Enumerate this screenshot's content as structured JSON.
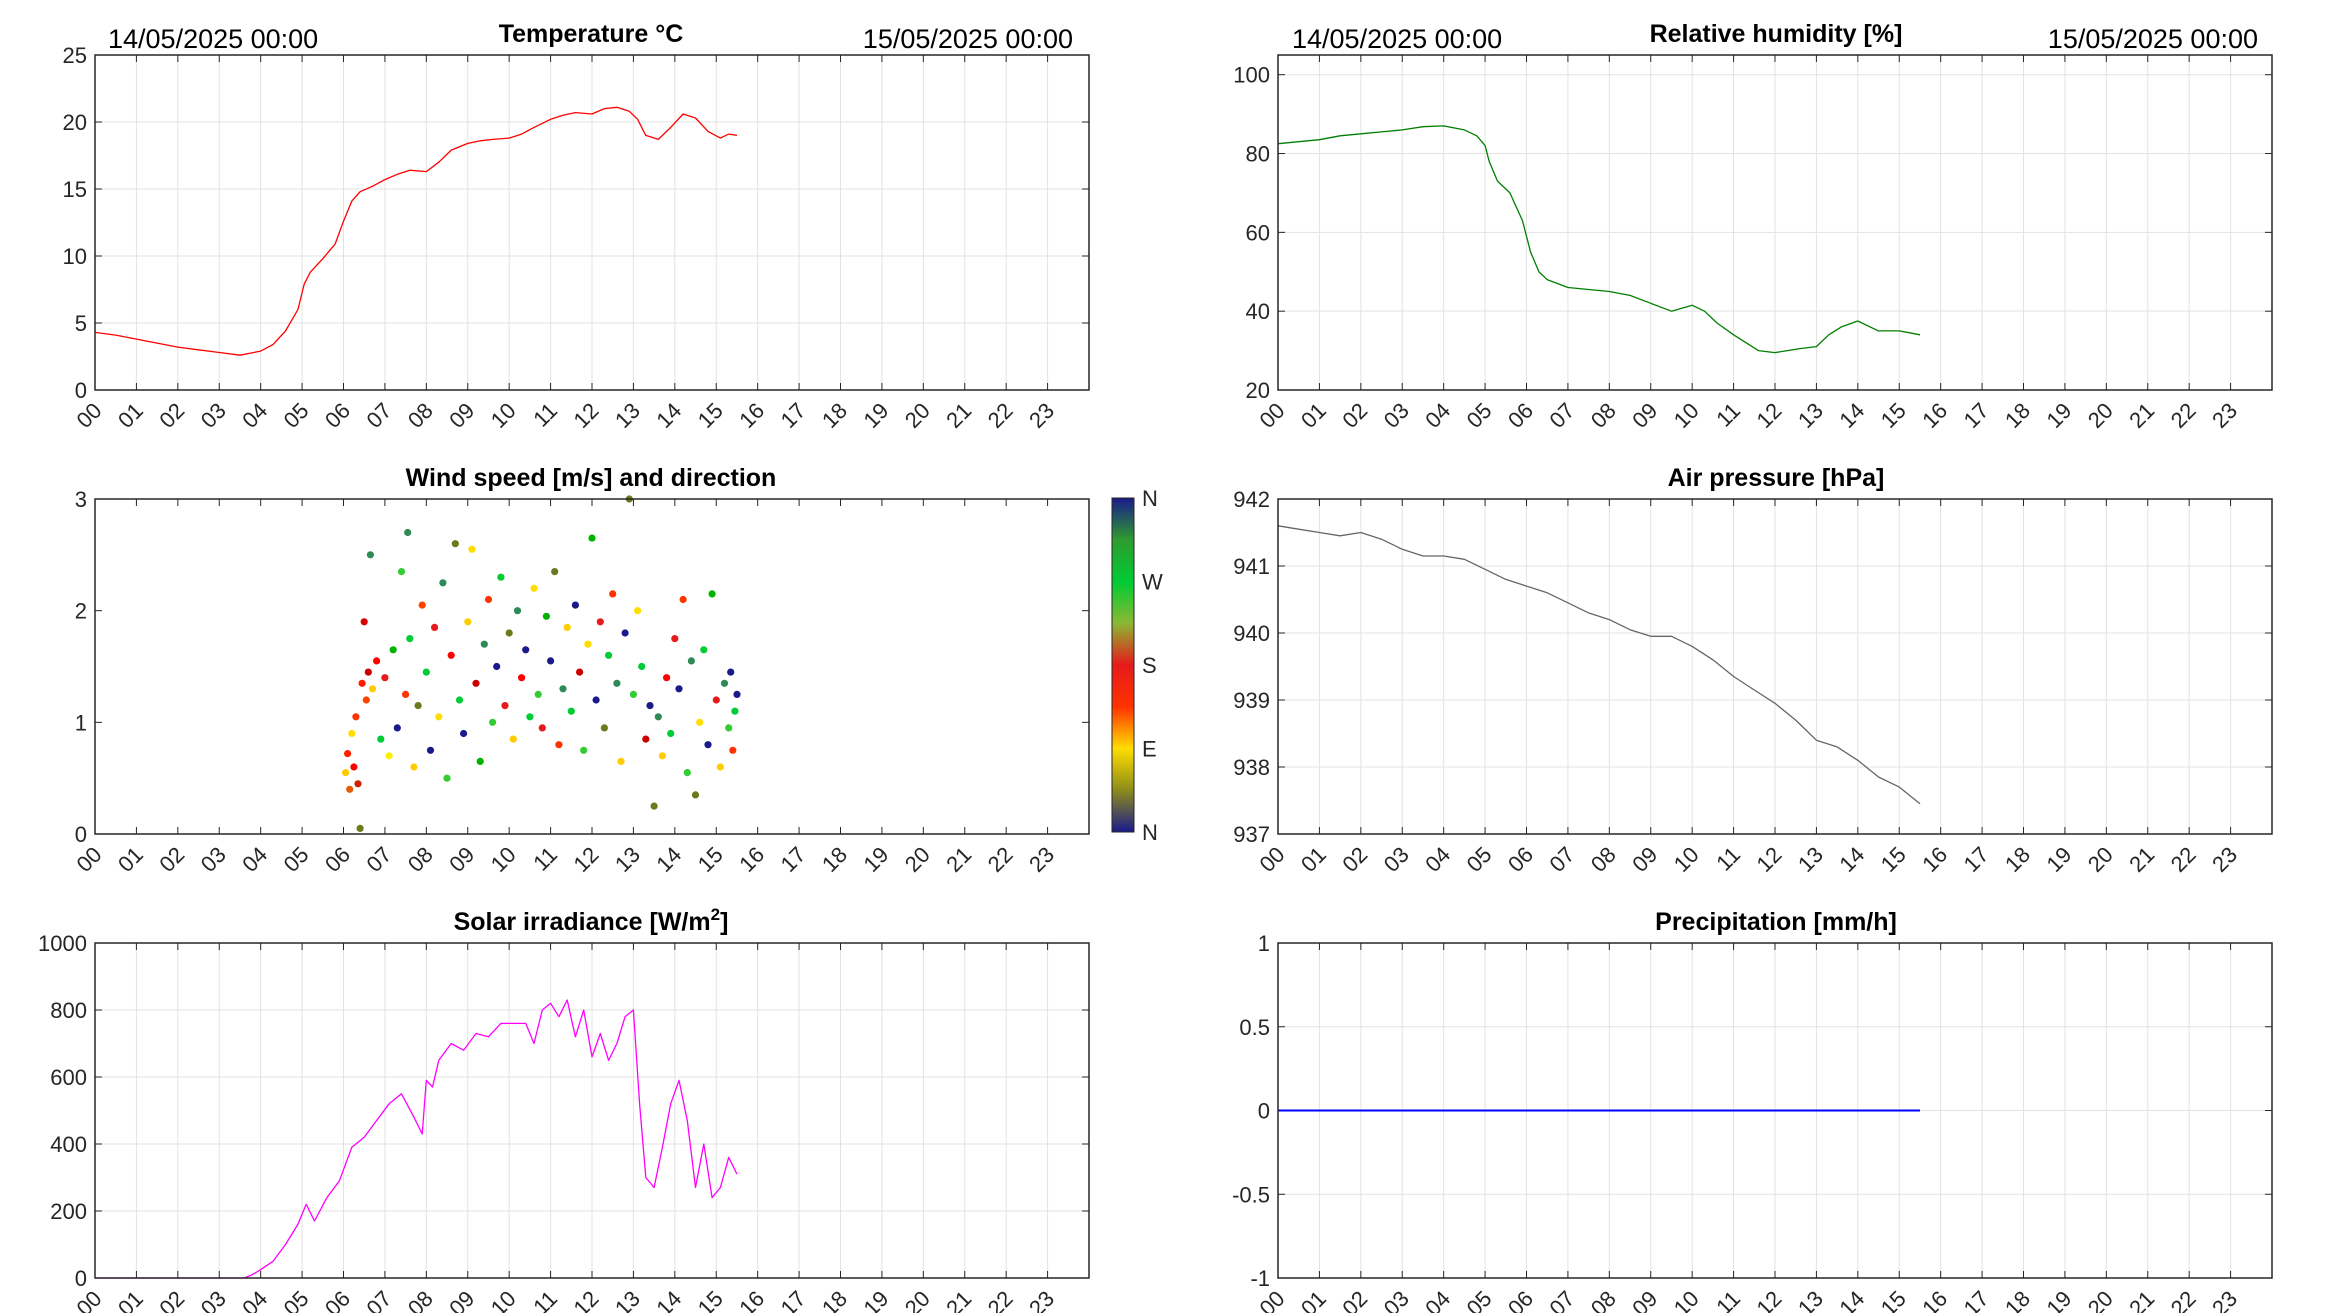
{
  "chart_data": [
    {
      "type": "line",
      "title": "Temperature °C",
      "date_start": "14/05/2025 00:00",
      "date_end": "15/05/2025 00:00",
      "xlim": [
        0,
        24
      ],
      "ylim": [
        0,
        25
      ],
      "yticks": [
        "0",
        "5",
        "10",
        "15",
        "20",
        "25"
      ],
      "xticks": [
        "00",
        "01",
        "02",
        "03",
        "04",
        "05",
        "06",
        "07",
        "08",
        "09",
        "10",
        "11",
        "12",
        "13",
        "14",
        "15",
        "16",
        "17",
        "18",
        "19",
        "20",
        "21",
        "22",
        "23"
      ],
      "grid": true,
      "color": "#ff0000",
      "x": [
        0,
        0.5,
        1,
        1.5,
        2,
        2.5,
        3,
        3.5,
        4,
        4.3,
        4.6,
        4.9,
        5.05,
        5.2,
        5.5,
        5.8,
        6.0,
        6.2,
        6.4,
        6.7,
        7.0,
        7.3,
        7.6,
        8.0,
        8.3,
        8.6,
        9.0,
        9.3,
        9.6,
        10.0,
        10.3,
        10.6,
        11.0,
        11.3,
        11.6,
        12.0,
        12.3,
        12.6,
        12.9,
        13.1,
        13.3,
        13.6,
        13.9,
        14.2,
        14.5,
        14.8,
        15.1,
        15.3,
        15.5
      ],
      "y": [
        4.3,
        4.1,
        3.8,
        3.5,
        3.2,
        3.0,
        2.8,
        2.6,
        2.9,
        3.4,
        4.4,
        6.0,
        7.9,
        8.8,
        9.8,
        10.9,
        12.6,
        14.1,
        14.8,
        15.2,
        15.7,
        16.1,
        16.4,
        16.3,
        17.0,
        17.9,
        18.4,
        18.6,
        18.7,
        18.8,
        19.1,
        19.6,
        20.2,
        20.5,
        20.7,
        20.6,
        21.0,
        21.1,
        20.8,
        20.2,
        19.0,
        18.7,
        19.6,
        20.6,
        20.3,
        19.3,
        18.8,
        19.1,
        19.0
      ]
    },
    {
      "type": "line",
      "title": "Relative humidity [%]",
      "date_start": "14/05/2025 00:00",
      "date_end": "15/05/2025 00:00",
      "xlim": [
        0,
        24
      ],
      "ylim": [
        20,
        105
      ],
      "yticks": [
        "20",
        "40",
        "60",
        "80",
        "100"
      ],
      "xticks": [
        "00",
        "01",
        "02",
        "03",
        "04",
        "05",
        "06",
        "07",
        "08",
        "09",
        "10",
        "11",
        "12",
        "13",
        "14",
        "15",
        "16",
        "17",
        "18",
        "19",
        "20",
        "21",
        "22",
        "23"
      ],
      "grid": true,
      "color": "#007f00",
      "x": [
        0,
        0.5,
        1,
        1.5,
        2,
        2.5,
        3,
        3.5,
        4,
        4.5,
        4.8,
        5.0,
        5.1,
        5.3,
        5.6,
        5.9,
        6.1,
        6.3,
        6.5,
        7.0,
        7.5,
        8.0,
        8.5,
        9.0,
        9.5,
        10.0,
        10.3,
        10.6,
        11.0,
        11.3,
        11.6,
        12.0,
        12.3,
        12.6,
        13.0,
        13.3,
        13.6,
        14.0,
        14.5,
        15.0,
        15.5
      ],
      "y": [
        82.5,
        83.0,
        83.5,
        84.5,
        85.0,
        85.5,
        86.0,
        86.8,
        87.0,
        86.0,
        84.5,
        82.0,
        78.0,
        73.0,
        70.0,
        63.0,
        55.0,
        50.0,
        48.0,
        46.0,
        45.5,
        45.0,
        44.0,
        42.0,
        40.0,
        41.5,
        40.0,
        37.0,
        34.0,
        32.0,
        30.0,
        29.5,
        30.0,
        30.5,
        31.0,
        34.0,
        36.0,
        37.5,
        35.0,
        35.0,
        34.0
      ]
    },
    {
      "type": "scatter",
      "title": "Wind speed [m/s] and direction",
      "xlim": [
        0,
        24
      ],
      "ylim": [
        0,
        3
      ],
      "yticks": [
        "0",
        "1",
        "2",
        "3"
      ],
      "xticks": [
        "00",
        "01",
        "02",
        "03",
        "04",
        "05",
        "06",
        "07",
        "08",
        "09",
        "10",
        "11",
        "12",
        "13",
        "14",
        "15",
        "16",
        "17",
        "18",
        "19",
        "20",
        "21",
        "22",
        "23"
      ],
      "grid": false,
      "colorbar": {
        "labels": [
          "N",
          "W",
          "S",
          "E",
          "N"
        ],
        "colors": [
          "#1a1a8c",
          "#2f9b2f",
          "#00cc33",
          "#8cb833",
          "#e61a1a",
          "#ff3300",
          "#ffdd00",
          "#8c8c1a",
          "#1a1a8c"
        ]
      },
      "points": [
        [
          6.05,
          0.55,
          "#ffcc00"
        ],
        [
          6.1,
          0.72,
          "#ff2200"
        ],
        [
          6.15,
          0.4,
          "#e65c00"
        ],
        [
          6.2,
          0.9,
          "#ffdd00"
        ],
        [
          6.25,
          0.6,
          "#ff0000"
        ],
        [
          6.3,
          1.05,
          "#ff3300"
        ],
        [
          6.35,
          0.45,
          "#cc2200"
        ],
        [
          6.4,
          0.05,
          "#6b7a1a"
        ],
        [
          6.45,
          1.35,
          "#ff1a00"
        ],
        [
          6.5,
          1.9,
          "#d90000"
        ],
        [
          6.55,
          1.2,
          "#ff4400"
        ],
        [
          6.6,
          1.45,
          "#cc0000"
        ],
        [
          6.65,
          2.5,
          "#2e8b57"
        ],
        [
          6.7,
          1.3,
          "#ffcc00"
        ],
        [
          6.8,
          1.55,
          "#ff0000"
        ],
        [
          6.9,
          0.85,
          "#00cc33"
        ],
        [
          7.0,
          1.4,
          "#e61a1a"
        ],
        [
          7.1,
          0.7,
          "#ffee00"
        ],
        [
          7.2,
          1.65,
          "#00b300"
        ],
        [
          7.3,
          0.95,
          "#1a1a8c"
        ],
        [
          7.4,
          2.35,
          "#33cc33"
        ],
        [
          7.5,
          1.25,
          "#ff3300"
        ],
        [
          7.55,
          2.7,
          "#2e8b57"
        ],
        [
          7.6,
          1.75,
          "#00cc33"
        ],
        [
          7.7,
          0.6,
          "#ffcc00"
        ],
        [
          7.8,
          1.15,
          "#6b7a1a"
        ],
        [
          7.9,
          2.05,
          "#ff4400"
        ],
        [
          8.0,
          1.45,
          "#00cc33"
        ],
        [
          8.1,
          0.75,
          "#1a1a8c"
        ],
        [
          8.2,
          1.85,
          "#e61a1a"
        ],
        [
          8.3,
          1.05,
          "#ffdd00"
        ],
        [
          8.4,
          2.25,
          "#2e8b57"
        ],
        [
          8.5,
          0.5,
          "#33cc33"
        ],
        [
          8.6,
          1.6,
          "#ff0000"
        ],
        [
          8.7,
          2.6,
          "#6b7a1a"
        ],
        [
          8.8,
          1.2,
          "#00cc33"
        ],
        [
          8.9,
          0.9,
          "#1a1a8c"
        ],
        [
          9.0,
          1.9,
          "#ffcc00"
        ],
        [
          9.1,
          2.55,
          "#ffdd00"
        ],
        [
          9.2,
          1.35,
          "#cc0000"
        ],
        [
          9.3,
          0.65,
          "#00b300"
        ],
        [
          9.4,
          1.7,
          "#2e8b57"
        ],
        [
          9.5,
          2.1,
          "#ff3300"
        ],
        [
          9.6,
          1.0,
          "#33cc33"
        ],
        [
          9.7,
          1.5,
          "#1a1a8c"
        ],
        [
          9.8,
          2.3,
          "#00cc33"
        ],
        [
          9.9,
          1.15,
          "#e61a1a"
        ],
        [
          10.0,
          1.8,
          "#6b7a1a"
        ],
        [
          10.1,
          0.85,
          "#ffcc00"
        ],
        [
          10.2,
          2.0,
          "#2e8b57"
        ],
        [
          10.3,
          1.4,
          "#ff0000"
        ],
        [
          10.4,
          1.65,
          "#1a1a8c"
        ],
        [
          10.5,
          1.05,
          "#00cc33"
        ],
        [
          10.6,
          2.2,
          "#ffdd00"
        ],
        [
          10.7,
          1.25,
          "#33cc33"
        ],
        [
          10.8,
          0.95,
          "#e61a1a"
        ],
        [
          10.9,
          1.95,
          "#00b300"
        ],
        [
          11.0,
          1.55,
          "#1a1a8c"
        ],
        [
          11.1,
          2.35,
          "#6b7a1a"
        ],
        [
          11.2,
          0.8,
          "#ff3300"
        ],
        [
          11.3,
          1.3,
          "#2e8b57"
        ],
        [
          11.4,
          1.85,
          "#ffcc00"
        ],
        [
          11.5,
          1.1,
          "#00cc33"
        ],
        [
          11.6,
          2.05,
          "#1a1a8c"
        ],
        [
          11.7,
          1.45,
          "#cc0000"
        ],
        [
          11.8,
          0.75,
          "#33cc33"
        ],
        [
          11.9,
          1.7,
          "#ffdd00"
        ],
        [
          12.0,
          2.65,
          "#00b300"
        ],
        [
          12.1,
          1.2,
          "#1a1a8c"
        ],
        [
          12.2,
          1.9,
          "#e61a1a"
        ],
        [
          12.3,
          0.95,
          "#6b7a1a"
        ],
        [
          12.4,
          1.6,
          "#00cc33"
        ],
        [
          12.5,
          2.15,
          "#ff3300"
        ],
        [
          12.6,
          1.35,
          "#2e8b57"
        ],
        [
          12.7,
          0.65,
          "#ffcc00"
        ],
        [
          12.8,
          1.8,
          "#1a1a8c"
        ],
        [
          12.9,
          3.0,
          "#6b7a1a"
        ],
        [
          13.0,
          1.25,
          "#33cc33"
        ],
        [
          13.1,
          2.0,
          "#ffdd00"
        ],
        [
          13.2,
          1.5,
          "#00cc33"
        ],
        [
          13.3,
          0.85,
          "#cc0000"
        ],
        [
          13.4,
          1.15,
          "#1a1a8c"
        ],
        [
          13.5,
          0.25,
          "#6b7a1a"
        ],
        [
          13.6,
          1.05,
          "#2e8b57"
        ],
        [
          13.7,
          0.7,
          "#ffcc00"
        ],
        [
          13.8,
          1.4,
          "#ff0000"
        ],
        [
          13.9,
          0.9,
          "#00cc33"
        ],
        [
          14.0,
          1.75,
          "#e61a1a"
        ],
        [
          14.1,
          1.3,
          "#1a1a8c"
        ],
        [
          14.2,
          2.1,
          "#ff3300"
        ],
        [
          14.3,
          0.55,
          "#33cc33"
        ],
        [
          14.4,
          1.55,
          "#2e8b57"
        ],
        [
          14.5,
          0.35,
          "#6b7a1a"
        ],
        [
          14.6,
          1.0,
          "#ffdd00"
        ],
        [
          14.7,
          1.65,
          "#00cc33"
        ],
        [
          14.8,
          0.8,
          "#1a1a8c"
        ],
        [
          14.9,
          2.15,
          "#00b300"
        ],
        [
          15.0,
          1.2,
          "#e61a1a"
        ],
        [
          15.1,
          0.6,
          "#ffcc00"
        ],
        [
          15.2,
          1.35,
          "#2e8b57"
        ],
        [
          15.3,
          0.95,
          "#33cc33"
        ],
        [
          15.35,
          1.45,
          "#1a1a8c"
        ],
        [
          15.4,
          0.75,
          "#ff3300"
        ],
        [
          15.45,
          1.1,
          "#00cc33"
        ],
        [
          15.5,
          1.25,
          "#1a1a8c"
        ]
      ]
    },
    {
      "type": "line",
      "title": "Air pressure [hPa]",
      "xlim": [
        0,
        24
      ],
      "ylim": [
        937,
        942
      ],
      "yticks": [
        "937",
        "938",
        "939",
        "940",
        "941",
        "942"
      ],
      "xticks": [
        "00",
        "01",
        "02",
        "03",
        "04",
        "05",
        "06",
        "07",
        "08",
        "09",
        "10",
        "11",
        "12",
        "13",
        "14",
        "15",
        "16",
        "17",
        "18",
        "19",
        "20",
        "21",
        "22",
        "23"
      ],
      "grid": true,
      "color": "#666666",
      "x": [
        0,
        0.5,
        1,
        1.5,
        2,
        2.5,
        3,
        3.5,
        4,
        4.5,
        5,
        5.5,
        6,
        6.5,
        7,
        7.5,
        8,
        8.5,
        9,
        9.5,
        10,
        10.5,
        11,
        11.5,
        12,
        12.5,
        13,
        13.5,
        14,
        14.5,
        15,
        15.5
      ],
      "y": [
        941.6,
        941.55,
        941.5,
        941.45,
        941.5,
        941.4,
        941.25,
        941.15,
        941.15,
        941.1,
        940.95,
        940.8,
        940.7,
        940.6,
        940.45,
        940.3,
        940.2,
        940.05,
        939.95,
        939.95,
        939.8,
        939.6,
        939.35,
        939.15,
        938.95,
        938.7,
        938.4,
        938.3,
        938.1,
        937.85,
        937.7,
        937.45
      ]
    },
    {
      "type": "line",
      "title": "Solar irradiance [W/m²]",
      "title_base": "Solar irradiance [W/m",
      "title_sup": "2",
      "title_end": "]",
      "xlim": [
        0,
        24
      ],
      "ylim": [
        0,
        1000
      ],
      "yticks": [
        "0",
        "200",
        "400",
        "600",
        "800",
        "1000"
      ],
      "xticks": [
        "00",
        "01",
        "02",
        "03",
        "04",
        "05",
        "06",
        "07",
        "08",
        "09",
        "10",
        "11",
        "12",
        "13",
        "14",
        "15",
        "16",
        "17",
        "18",
        "19",
        "20",
        "21",
        "22",
        "23"
      ],
      "grid": true,
      "color": "#ff00ff",
      "x": [
        0,
        3.6,
        3.8,
        4.0,
        4.3,
        4.6,
        4.9,
        5.1,
        5.3,
        5.6,
        5.9,
        6.2,
        6.5,
        6.8,
        7.1,
        7.4,
        7.7,
        7.9,
        8.0,
        8.15,
        8.3,
        8.6,
        8.9,
        9.2,
        9.5,
        9.8,
        10.1,
        10.4,
        10.6,
        10.8,
        11.0,
        11.2,
        11.4,
        11.6,
        11.8,
        12.0,
        12.2,
        12.4,
        12.6,
        12.8,
        13.0,
        13.15,
        13.3,
        13.5,
        13.7,
        13.9,
        14.1,
        14.3,
        14.5,
        14.7,
        14.9,
        15.1,
        15.3,
        15.5
      ],
      "y": [
        0,
        0,
        10,
        25,
        50,
        100,
        160,
        220,
        170,
        240,
        290,
        390,
        420,
        470,
        520,
        550,
        480,
        430,
        590,
        570,
        650,
        700,
        680,
        730,
        720,
        760,
        760,
        760,
        700,
        800,
        820,
        780,
        830,
        720,
        800,
        660,
        730,
        650,
        700,
        780,
        800,
        520,
        300,
        270,
        390,
        520,
        590,
        470,
        270,
        400,
        240,
        270,
        360,
        310
      ]
    },
    {
      "type": "line",
      "title": "Precipitation [mm/h]",
      "xlim": [
        0,
        24
      ],
      "ylim": [
        -1,
        1
      ],
      "yticks": [
        "-1",
        "-0.5",
        "0",
        "0.5",
        "1"
      ],
      "xticks": [
        "00",
        "01",
        "02",
        "03",
        "04",
        "05",
        "06",
        "07",
        "08",
        "09",
        "10",
        "11",
        "12",
        "13",
        "14",
        "15",
        "16",
        "17",
        "18",
        "19",
        "20",
        "21",
        "22",
        "23"
      ],
      "grid": true,
      "color": "#0000ff",
      "x": [
        0,
        15.5
      ],
      "y": [
        0,
        0
      ]
    }
  ]
}
